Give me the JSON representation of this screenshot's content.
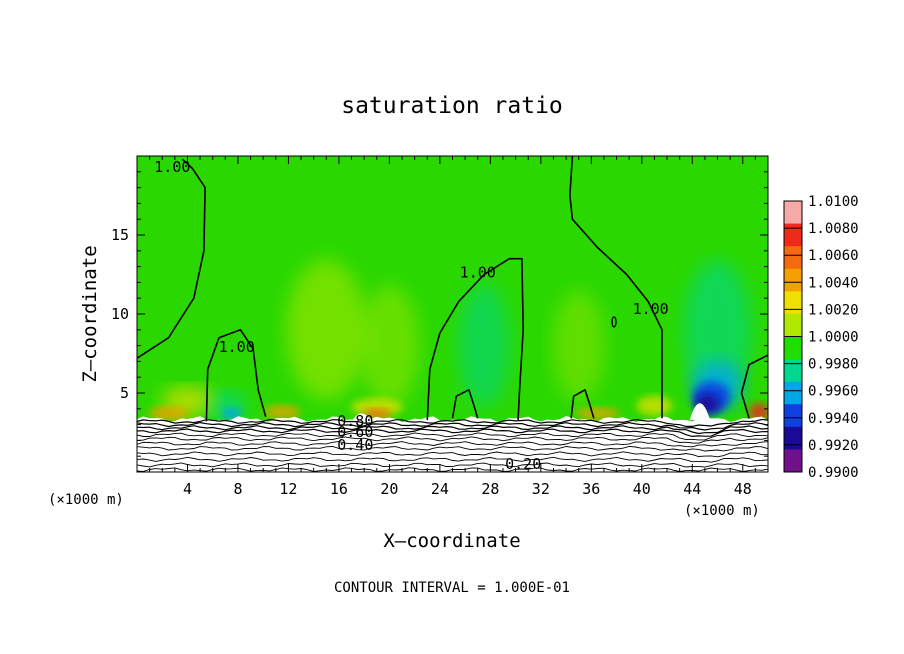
{
  "chart_data": {
    "type": "heatmap",
    "title": "saturation ratio",
    "xlabel": "X–coordinate",
    "ylabel": "Z–coordinate",
    "x_unit": "(×1000 m)",
    "x_unit_right": "(×1000 m)",
    "xlim": [
      0,
      50
    ],
    "ylim": [
      0,
      20
    ],
    "x_ticks": [
      4,
      8,
      12,
      16,
      20,
      24,
      28,
      32,
      36,
      40,
      44,
      48
    ],
    "y_ticks": [
      5,
      10,
      15
    ],
    "footer": "CONTOUR INTERVAL = 1.000E-01",
    "colorbar": {
      "levels": [
        "1.0100",
        "1.0080",
        "1.0060",
        "1.0040",
        "1.0020",
        "1.0000",
        "0.9980",
        "0.9960",
        "0.9940",
        "0.9920",
        "0.9900"
      ],
      "colors": [
        "#f7a8a8",
        "#ee2a1a",
        "#f46a10",
        "#f5a000",
        "#f0e000",
        "#b0e800",
        "#22dd00",
        "#00d890",
        "#00a8e8",
        "#1040e0",
        "#1a0a98",
        "#70108a"
      ]
    },
    "background_color": "#2ad800",
    "contour_labels": [
      {
        "text": "1.00",
        "x": 2.8,
        "y": 19.0
      },
      {
        "text": "1.00",
        "x": 7.9,
        "y": 7.6
      },
      {
        "text": "1.00",
        "x": 27.0,
        "y": 12.3
      },
      {
        "text": "1.00",
        "x": 40.7,
        "y": 10.0
      },
      {
        "text": "0.80",
        "x": 17.3,
        "y": 2.9
      },
      {
        "text": "0.60",
        "x": 17.3,
        "y": 2.2
      },
      {
        "text": "0.40",
        "x": 17.3,
        "y": 1.4
      },
      {
        "text": "0.20",
        "x": 30.6,
        "y": 0.2
      }
    ],
    "contours_one": [
      {
        "points": [
          [
            0,
            7.2
          ],
          [
            2.5,
            8.5
          ],
          [
            4.5,
            11
          ],
          [
            5.3,
            14
          ],
          [
            5.4,
            18
          ],
          [
            4.4,
            19.2
          ],
          [
            3.6,
            19.8
          ]
        ]
      },
      {
        "points": [
          [
            5.5,
            3.2
          ],
          [
            5.6,
            6.5
          ],
          [
            6.5,
            8.5
          ],
          [
            8.2,
            9.0
          ],
          [
            9.2,
            7.8
          ],
          [
            9.6,
            5.2
          ],
          [
            10.2,
            3.5
          ]
        ]
      },
      {
        "points": [
          [
            23,
            3.3
          ],
          [
            23.2,
            6.5
          ],
          [
            24,
            8.8
          ],
          [
            25.5,
            10.8
          ],
          [
            27.5,
            12.5
          ],
          [
            29.5,
            13.5
          ],
          [
            30.5,
            13.5
          ],
          [
            30.6,
            9
          ],
          [
            30.3,
            5
          ],
          [
            30.2,
            3.3
          ]
        ]
      },
      {
        "points": [
          [
            34.5,
            20
          ],
          [
            34.3,
            17.5
          ],
          [
            34.5,
            16
          ],
          [
            36.5,
            14.2
          ],
          [
            38.8,
            12.5
          ],
          [
            40.5,
            10.8
          ],
          [
            41.6,
            9
          ],
          [
            41.6,
            5
          ],
          [
            41.6,
            3.4
          ]
        ]
      },
      {
        "points": [
          [
            48.5,
            3.4
          ],
          [
            47.9,
            5
          ],
          [
            48.5,
            6.8
          ],
          [
            50,
            7.4
          ]
        ]
      },
      {
        "points": [
          [
            25,
            3.4
          ],
          [
            25.3,
            4.8
          ],
          [
            26.3,
            5.2
          ],
          [
            26.7,
            4.2
          ],
          [
            27,
            3.4
          ]
        ]
      },
      {
        "points": [
          [
            34.4,
            3.4
          ],
          [
            34.6,
            4.8
          ],
          [
            35.5,
            5.2
          ],
          [
            35.9,
            4.2
          ],
          [
            36.2,
            3.4
          ]
        ]
      }
    ]
  }
}
